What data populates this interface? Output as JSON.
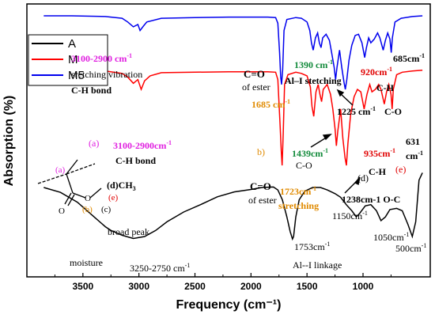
{
  "chart_data": {
    "type": "line",
    "xlabel": "Frequency (cm⁻¹)",
    "ylabel": "Absorption (%)",
    "xlim": [
      4000,
      400
    ],
    "x_ticks": [
      3500,
      3000,
      2500,
      2000,
      1500,
      1000
    ],
    "grid": false,
    "legend": "top-left",
    "series": [
      {
        "name": "A",
        "color": "#000000",
        "points": [
          [
            3850,
            0.3
          ],
          [
            3700,
            0.28
          ],
          [
            3550,
            0.24
          ],
          [
            3400,
            0.18
          ],
          [
            3300,
            0.14
          ],
          [
            3250,
            0.125
          ],
          [
            3150,
            0.105
          ],
          [
            3050,
            0.092
          ],
          [
            2950,
            0.1
          ],
          [
            2850,
            0.125
          ],
          [
            2750,
            0.16
          ],
          [
            2600,
            0.2
          ],
          [
            2450,
            0.23
          ],
          [
            2300,
            0.262
          ],
          [
            2150,
            0.282
          ],
          [
            2000,
            0.292
          ],
          [
            1900,
            0.3
          ],
          [
            1800,
            0.302
          ],
          [
            1760,
            0.29
          ],
          [
            1720,
            0.25
          ],
          [
            1680,
            0.18
          ],
          [
            1650,
            0.12
          ],
          [
            1630,
            0.09
          ],
          [
            1620,
            0.1
          ],
          [
            1600,
            0.18
          ],
          [
            1570,
            0.25
          ],
          [
            1520,
            0.285
          ],
          [
            1450,
            0.3
          ],
          [
            1380,
            0.3
          ],
          [
            1320,
            0.29
          ],
          [
            1250,
            0.275
          ],
          [
            1200,
            0.26
          ],
          [
            1150,
            0.23
          ],
          [
            1100,
            0.205
          ],
          [
            1060,
            0.18
          ],
          [
            1030,
            0.195
          ],
          [
            980,
            0.225
          ],
          [
            930,
            0.23
          ],
          [
            880,
            0.205
          ],
          [
            840,
            0.165
          ],
          [
            800,
            0.18
          ],
          [
            760,
            0.21
          ],
          [
            700,
            0.215
          ],
          [
            650,
            0.205
          ],
          [
            600,
            0.15
          ],
          [
            560,
            0.1
          ],
          [
            530,
            0.16
          ],
          [
            500,
            0.33
          ],
          [
            470,
            0.36
          ]
        ]
      },
      {
        "name": "M",
        "color": "#ff0000",
        "points": [
          [
            3850,
            0.778
          ],
          [
            3600,
            0.778
          ],
          [
            3300,
            0.775
          ],
          [
            3150,
            0.765
          ],
          [
            3100,
            0.75
          ],
          [
            3050,
            0.725
          ],
          [
            3010,
            0.74
          ],
          [
            2980,
            0.7
          ],
          [
            2950,
            0.735
          ],
          [
            2900,
            0.755
          ],
          [
            2800,
            0.768
          ],
          [
            2500,
            0.77
          ],
          [
            2200,
            0.772
          ],
          [
            2000,
            0.772
          ],
          [
            1850,
            0.772
          ],
          [
            1780,
            0.77
          ],
          [
            1760,
            0.74
          ],
          [
            1740,
            0.55
          ],
          [
            1730,
            0.45
          ],
          [
            1722,
            0.39
          ],
          [
            1712,
            0.52
          ],
          [
            1700,
            0.72
          ],
          [
            1670,
            0.76
          ],
          [
            1600,
            0.77
          ],
          [
            1550,
            0.765
          ],
          [
            1500,
            0.755
          ],
          [
            1470,
            0.71
          ],
          [
            1455,
            0.63
          ],
          [
            1440,
            0.59
          ],
          [
            1420,
            0.69
          ],
          [
            1400,
            0.72
          ],
          [
            1385,
            0.68
          ],
          [
            1370,
            0.65
          ],
          [
            1355,
            0.7
          ],
          [
            1320,
            0.72
          ],
          [
            1290,
            0.68
          ],
          [
            1270,
            0.62
          ],
          [
            1250,
            0.54
          ],
          [
            1238,
            0.47
          ],
          [
            1225,
            0.53
          ],
          [
            1200,
            0.62
          ],
          [
            1180,
            0.5
          ],
          [
            1160,
            0.42
          ],
          [
            1148,
            0.39
          ],
          [
            1135,
            0.48
          ],
          [
            1110,
            0.6
          ],
          [
            1080,
            0.67
          ],
          [
            1050,
            0.7
          ],
          [
            1020,
            0.69
          ],
          [
            990,
            0.62
          ],
          [
            965,
            0.68
          ],
          [
            940,
            0.72
          ],
          [
            920,
            0.69
          ],
          [
            890,
            0.7
          ],
          [
            860,
            0.72
          ],
          [
            840,
            0.7
          ],
          [
            810,
            0.64
          ],
          [
            790,
            0.69
          ],
          [
            770,
            0.72
          ],
          [
            750,
            0.68
          ],
          [
            740,
            0.62
          ],
          [
            730,
            0.7
          ],
          [
            700,
            0.76
          ],
          [
            650,
            0.77
          ],
          [
            560,
            0.775
          ],
          [
            470,
            0.778
          ]
        ]
      },
      {
        "name": "M5",
        "color": "#0000ee",
        "points": [
          [
            3850,
            1.0
          ],
          [
            3600,
            1.0
          ],
          [
            3300,
            0.997
          ],
          [
            3150,
            0.99
          ],
          [
            3100,
            0.975
          ],
          [
            3050,
            0.955
          ],
          [
            3010,
            0.965
          ],
          [
            2990,
            0.94
          ],
          [
            2960,
            0.958
          ],
          [
            2930,
            0.975
          ],
          [
            2800,
            0.99
          ],
          [
            2500,
            0.993
          ],
          [
            2200,
            0.995
          ],
          [
            2000,
            0.995
          ],
          [
            1850,
            0.995
          ],
          [
            1780,
            0.993
          ],
          [
            1760,
            0.97
          ],
          [
            1745,
            0.85
          ],
          [
            1735,
            0.75
          ],
          [
            1727,
            0.72
          ],
          [
            1717,
            0.78
          ],
          [
            1705,
            0.94
          ],
          [
            1680,
            0.985
          ],
          [
            1600,
            0.993
          ],
          [
            1550,
            0.99
          ],
          [
            1500,
            0.975
          ],
          [
            1475,
            0.94
          ],
          [
            1460,
            0.89
          ],
          [
            1445,
            0.86
          ],
          [
            1425,
            0.91
          ],
          [
            1405,
            0.93
          ],
          [
            1390,
            0.89
          ],
          [
            1375,
            0.87
          ],
          [
            1360,
            0.91
          ],
          [
            1330,
            0.925
          ],
          [
            1300,
            0.9
          ],
          [
            1280,
            0.85
          ],
          [
            1258,
            0.79
          ],
          [
            1245,
            0.74
          ],
          [
            1232,
            0.79
          ],
          [
            1210,
            0.86
          ],
          [
            1190,
            0.79
          ],
          [
            1170,
            0.73
          ],
          [
            1158,
            0.7
          ],
          [
            1145,
            0.74
          ],
          [
            1125,
            0.82
          ],
          [
            1100,
            0.88
          ],
          [
            1070,
            0.92
          ],
          [
            1040,
            0.925
          ],
          [
            1010,
            0.89
          ],
          [
            985,
            0.83
          ],
          [
            970,
            0.87
          ],
          [
            950,
            0.91
          ],
          [
            930,
            0.89
          ],
          [
            900,
            0.905
          ],
          [
            870,
            0.93
          ],
          [
            850,
            0.91
          ],
          [
            820,
            0.86
          ],
          [
            800,
            0.9
          ],
          [
            780,
            0.93
          ],
          [
            760,
            0.905
          ],
          [
            748,
            0.85
          ],
          [
            738,
            0.91
          ],
          [
            715,
            0.975
          ],
          [
            660,
            0.99
          ],
          [
            560,
            0.997
          ],
          [
            470,
            1.0
          ]
        ]
      }
    ],
    "annotations": {
      "m5_ch_range": "3100-2900 cm",
      "m5_ch_range_sup": "-1",
      "m5_ch_desc": "sretching vibration",
      "m5_ch_bond": "C-H bond",
      "m5_co_ester_1": "C=O",
      "m5_co_ester_2": "of ester",
      "m5_1685": "1685 cm",
      "m5_1685_sup": "-1",
      "m5_1390": "1390 cm",
      "m5_1390_sup": "-1",
      "m5_ali": "Al–I stetching",
      "m5_1225": "1225 cm",
      "m5_1225_sup": "-1",
      "m5_co": "C-O",
      "m5_920": "920cm",
      "m5_920_sup": "-1",
      "m5_ch_short": "C-H",
      "m5_685": "685cm",
      "m5_685_sup": "-1",
      "m_a": "(a)",
      "m_ch_range": "3100-2900cm",
      "m_ch_range_sup": "-1",
      "m_ch_bond": "C-H bond",
      "m_b": "b)",
      "m_co_ester_1": "C=O",
      "m_co_ester_2": "of ester",
      "m_1723": "1723cm",
      "m_1723_sup": "-1",
      "m_stretching": "stretching",
      "m_1439": "1439cm",
      "m_1439_sup": "-1",
      "m_co": "C-O",
      "m_d": "(d)",
      "m_ch": "C-H",
      "m_1238": "1238cm-1 O-C",
      "m_935": "935cm",
      "m_935_sup": "-1",
      "m_e": "(e)",
      "m_631": "631",
      "m_631_unit": "cm",
      "m_631_sup": "-1",
      "a_1150": "1150cm",
      "a_1150_sup": "-1",
      "a_1050": "1050cm",
      "a_1050_sup": "-1",
      "a_500": "500cm",
      "a_500_sup": "-1",
      "a_broad": "broad peak",
      "a_moisture": "moisture",
      "a_range": "3250-2750 cm",
      "a_range_sup": "-1",
      "a_1753": "1753cm",
      "a_1753_sup": "-1",
      "a_ali": "Al--I linkage"
    },
    "structure": {
      "label_a": "(a)",
      "label_b": "(b)",
      "label_c": "(c)",
      "label_d": "(d)CH",
      "label_d_sub": "3",
      "label_e": "(e)",
      "atom_o1": "O",
      "atom_o2": "O"
    }
  }
}
